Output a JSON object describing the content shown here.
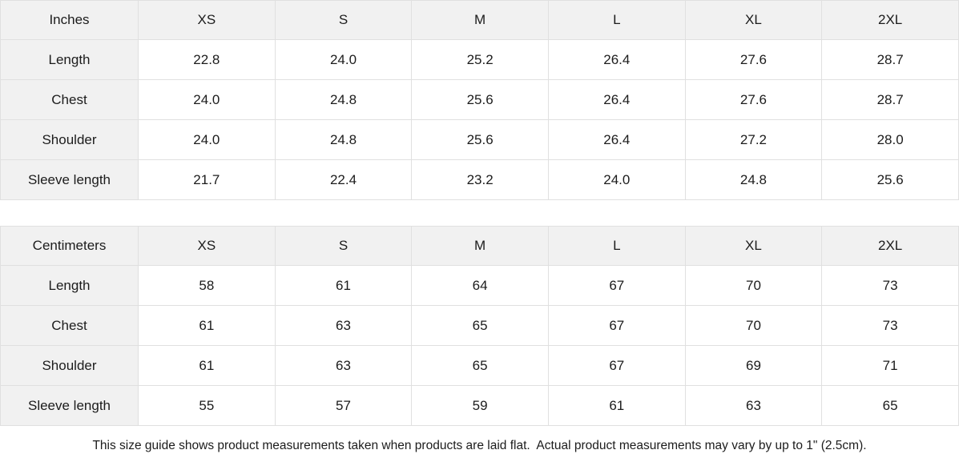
{
  "tables": [
    {
      "name": "inches",
      "unit_label": "Inches",
      "size_columns": [
        "XS",
        "S",
        "M",
        "L",
        "XL",
        "2XL"
      ],
      "rows": [
        {
          "label": "Length",
          "values": [
            "22.8",
            "24.0",
            "25.2",
            "26.4",
            "27.6",
            "28.7"
          ]
        },
        {
          "label": "Chest",
          "values": [
            "24.0",
            "24.8",
            "25.6",
            "26.4",
            "27.6",
            "28.7"
          ]
        },
        {
          "label": "Shoulder",
          "values": [
            "24.0",
            "24.8",
            "25.6",
            "26.4",
            "27.2",
            "28.0"
          ]
        },
        {
          "label": "Sleeve length",
          "values": [
            "21.7",
            "22.4",
            "23.2",
            "24.0",
            "24.8",
            "25.6"
          ]
        }
      ]
    },
    {
      "name": "centimeters",
      "unit_label": "Centimeters",
      "size_columns": [
        "XS",
        "S",
        "M",
        "L",
        "XL",
        "2XL"
      ],
      "rows": [
        {
          "label": "Length",
          "values": [
            "58",
            "61",
            "64",
            "67",
            "70",
            "73"
          ]
        },
        {
          "label": "Chest",
          "values": [
            "61",
            "63",
            "65",
            "67",
            "70",
            "73"
          ]
        },
        {
          "label": "Shoulder",
          "values": [
            "61",
            "63",
            "65",
            "67",
            "69",
            "71"
          ]
        },
        {
          "label": "Sleeve length",
          "values": [
            "55",
            "57",
            "59",
            "61",
            "63",
            "65"
          ]
        }
      ]
    }
  ],
  "footer": {
    "note": "This size guide shows product measurements taken when products are laid flat.  Actual product measurements may vary by up to 1\" (2.5cm)."
  },
  "colors": {
    "cell_fill": "#f1f1f1",
    "border": "#e0e0e0",
    "text": "#1c1c1c",
    "background": "#ffffff"
  }
}
